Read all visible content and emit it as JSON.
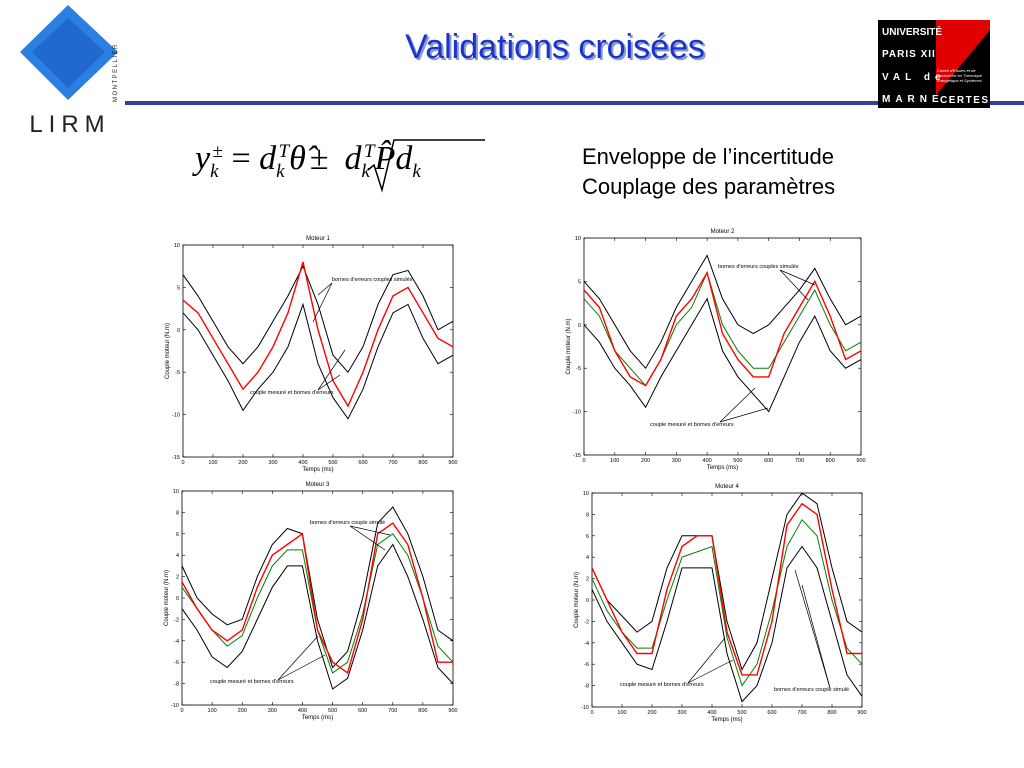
{
  "header": {
    "title": "Validations croisées",
    "lirm": "LIRM",
    "lirm_city": "MONTPELLIER",
    "univ": [
      "UNIVERSITÉ",
      "PARIS XII",
      "VAL de",
      "MARNE"
    ],
    "certes": "CERTES",
    "certes_desc": "Centre d'Etudes et de Recherche en Thermique Energétique et Systèmes"
  },
  "formula": [
    "y",
    "k",
    "±",
    "=",
    "d",
    "k",
    "T",
    "θ̂",
    "±",
    "d",
    "k",
    "T",
    "P̂",
    "d",
    "k"
  ],
  "bullets": [
    "Enveloppe de l’incertitude",
    "Couplage des paramètres"
  ],
  "chart_data": [
    {
      "type": "line",
      "title": "Moteur 1",
      "x_label": "Temps (ms)",
      "y_label": "Couple moteur (N.m)",
      "x": [
        0,
        50,
        100,
        150,
        200,
        250,
        300,
        350,
        400,
        450,
        500,
        550,
        600,
        650,
        700,
        750,
        800,
        850,
        900
      ],
      "xlim": [
        0,
        900
      ],
      "xticks": [
        0,
        100,
        200,
        300,
        400,
        500,
        600,
        700,
        800,
        900
      ],
      "ylim": [
        -15,
        10
      ],
      "yticks": [
        -15,
        -10,
        -5,
        0,
        5,
        10
      ],
      "series": [
        {
          "color": "#000000",
          "values": [
            6.5,
            4,
            1,
            -2,
            -4,
            -2,
            1,
            4,
            7.5,
            3,
            -3,
            -5,
            -2,
            3,
            6.5,
            7,
            4,
            0,
            1
          ]
        },
        {
          "color": "#000000",
          "values": [
            2,
            0,
            -3,
            -6,
            -9.5,
            -7,
            -5,
            -2,
            3,
            -4,
            -8,
            -10.5,
            -7,
            -2,
            2,
            3,
            -1,
            -4,
            -3
          ]
        },
        {
          "color": "#ff0000",
          "values": [
            3.5,
            2,
            -1,
            -4,
            -7,
            -5,
            -2,
            2,
            8,
            0,
            -6,
            -9,
            -5,
            0,
            4,
            5,
            2,
            -1,
            -2
          ]
        }
      ],
      "annotations": [
        "bornes d'erreurs couples simulés",
        "couple mesuré et bornes d'erreurs"
      ]
    },
    {
      "type": "line",
      "title": "Moteur 2",
      "x_label": "Temps (ms)",
      "y_label": "Couple moteur (N.m)",
      "x": [
        0,
        50,
        100,
        150,
        200,
        250,
        300,
        350,
        400,
        450,
        500,
        550,
        600,
        650,
        700,
        750,
        800,
        850,
        900
      ],
      "xlim": [
        0,
        900
      ],
      "xticks": [
        0,
        100,
        200,
        300,
        400,
        500,
        600,
        700,
        800,
        900
      ],
      "ylim": [
        -15,
        10
      ],
      "yticks": [
        -15,
        -10,
        -5,
        0,
        5,
        10
      ],
      "series": [
        {
          "color": "#000000",
          "values": [
            5,
            3,
            0,
            -3,
            -5,
            -2,
            2,
            5,
            8,
            3,
            0,
            -1,
            0,
            2,
            4,
            6.5,
            3,
            0,
            1
          ]
        },
        {
          "color": "#000000",
          "values": [
            0,
            -2,
            -5,
            -7,
            -9.5,
            -6,
            -3,
            0,
            3,
            -3,
            -6,
            -8,
            -10,
            -6,
            -2,
            1,
            -3,
            -5,
            -4
          ]
        },
        {
          "color": "#008000",
          "values": [
            3,
            1,
            -3,
            -5,
            -7,
            -4,
            0,
            2,
            6,
            0,
            -3,
            -5,
            -5,
            -2,
            1,
            4,
            0,
            -3,
            -2
          ]
        },
        {
          "color": "#ff0000",
          "values": [
            4,
            2,
            -3,
            -6,
            -7,
            -4,
            1,
            3,
            6,
            -1,
            -4,
            -6,
            -6,
            -1,
            2,
            5,
            1,
            -4,
            -3
          ]
        }
      ],
      "annotations": [
        "bornes d'erreurs couples simulés",
        "couple mesuré et bornes d'erreurs"
      ]
    },
    {
      "type": "line",
      "title": "Moteur 3",
      "x_label": "Temps (ms)",
      "y_label": "Couple moteur (N.m)",
      "x": [
        0,
        50,
        100,
        150,
        200,
        250,
        300,
        350,
        400,
        450,
        500,
        550,
        600,
        650,
        700,
        750,
        800,
        850,
        900
      ],
      "xlim": [
        0,
        900
      ],
      "xticks": [
        0,
        100,
        200,
        300,
        400,
        500,
        600,
        700,
        800,
        900
      ],
      "ylim": [
        -10,
        10
      ],
      "yticks": [
        -10,
        -8,
        -6,
        -4,
        -2,
        0,
        2,
        4,
        6,
        8,
        10
      ],
      "series": [
        {
          "color": "#000000",
          "values": [
            3,
            0,
            -1.5,
            -2.5,
            -2,
            2,
            5,
            6.5,
            6,
            -2,
            -6.5,
            -5,
            0,
            7,
            8.5,
            6,
            2,
            -3,
            -4
          ]
        },
        {
          "color": "#000000",
          "values": [
            -1,
            -3,
            -5.5,
            -6.5,
            -5,
            -2,
            1,
            3,
            3,
            -4,
            -8.5,
            -7.5,
            -3,
            3,
            5,
            2,
            -2,
            -6.5,
            -8
          ]
        },
        {
          "color": "#008000",
          "values": [
            1,
            -1,
            -3,
            -4.5,
            -3.5,
            0,
            3,
            4.5,
            4.5,
            -3,
            -7,
            -6,
            -1.5,
            5,
            6,
            4,
            0,
            -4.5,
            -6
          ]
        },
        {
          "color": "#ff0000",
          "values": [
            1.5,
            -1,
            -3,
            -4,
            -3,
            1,
            4,
            5,
            6,
            -3,
            -6,
            -7,
            -2,
            6,
            7,
            5,
            0,
            -6,
            -6
          ]
        }
      ],
      "annotations": [
        "bornes d'erreurs couple simulé",
        "couple mesuré et bornes d'erreurs"
      ]
    },
    {
      "type": "line",
      "title": "Moteur 4",
      "x_label": "Temps (ms)",
      "y_label": "Couple moteur (N.m)",
      "x": [
        0,
        50,
        100,
        150,
        200,
        250,
        300,
        350,
        400,
        450,
        500,
        550,
        600,
        650,
        700,
        750,
        800,
        850,
        900
      ],
      "xlim": [
        0,
        900
      ],
      "xticks": [
        0,
        100,
        200,
        300,
        400,
        500,
        600,
        700,
        800,
        900
      ],
      "ylim": [
        -10,
        10
      ],
      "yticks": [
        -10,
        -8,
        -6,
        -4,
        -2,
        0,
        2,
        4,
        6,
        8,
        10
      ],
      "series": [
        {
          "color": "#000000",
          "values": [
            3,
            0,
            -1.5,
            -3,
            -2,
            3,
            6,
            6,
            6,
            -2,
            -6.5,
            -4,
            2,
            8,
            10,
            9,
            3,
            -2,
            -3
          ]
        },
        {
          "color": "#000000",
          "values": [
            1,
            -2,
            -4,
            -6,
            -6.5,
            -2,
            3,
            3,
            3,
            -5,
            -9.5,
            -8,
            -4,
            3,
            5,
            3,
            -2,
            -7,
            -9
          ]
        },
        {
          "color": "#008000",
          "values": [
            2,
            -1,
            -3,
            -4.5,
            -4.5,
            0,
            4,
            4.5,
            5,
            -3.5,
            -8,
            -6,
            -1,
            5,
            7.5,
            6,
            0,
            -4.5,
            -6
          ]
        },
        {
          "color": "#ff0000",
          "values": [
            3,
            0,
            -3,
            -5,
            -5,
            1,
            5,
            6,
            6,
            -3,
            -7,
            -7,
            -2,
            7,
            9,
            8,
            1,
            -5,
            -5
          ]
        }
      ],
      "annotations": [
        "couple mesuré et bornes d'erreurs",
        "bornes d'erreurs couple simulé"
      ]
    }
  ]
}
